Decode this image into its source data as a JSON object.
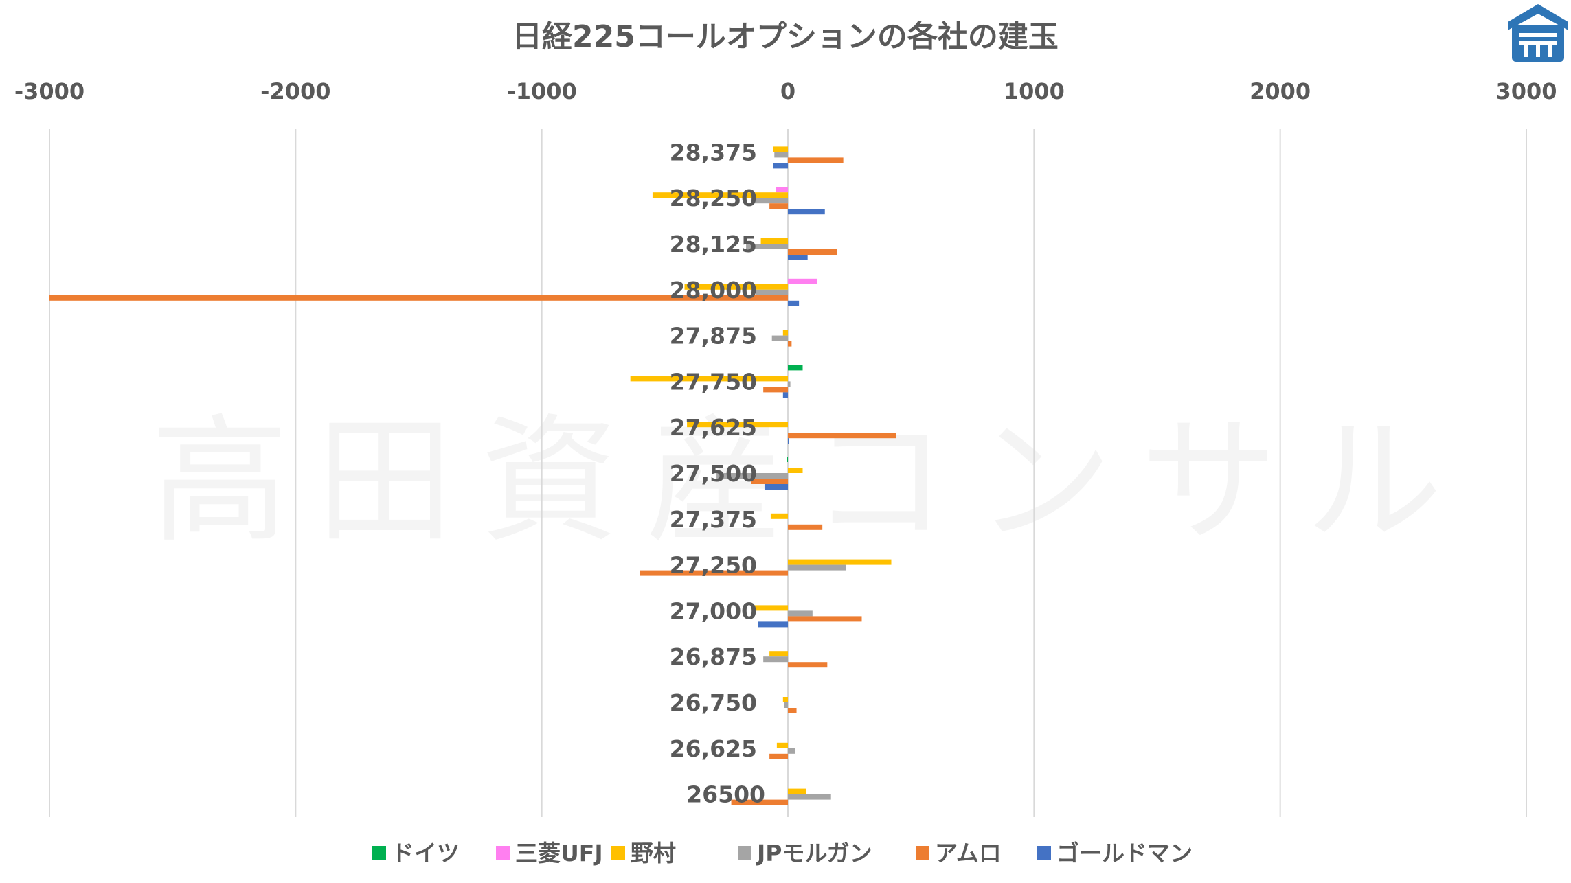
{
  "chart_data": {
    "type": "bar",
    "orientation": "horizontal",
    "title": "日経225コールオプションの各社の建玉",
    "xlim": [
      -3000,
      3000
    ],
    "xticks": [
      -3000,
      -2000,
      -1000,
      0,
      1000,
      2000,
      3000
    ],
    "xtick_labels": [
      "-3000",
      "-2000",
      "-1000",
      "0",
      "1000",
      "2000",
      "3000"
    ],
    "x_axis_position": "top",
    "grid": "vertical",
    "legend_position": "bottom",
    "categories": [
      "28,375",
      "28,250",
      "28,125",
      "28,000",
      "27,875",
      "27,750",
      "27,625",
      "27,500",
      "27,375",
      "27,250",
      "27,000",
      "26,875",
      "26,750",
      "26,625",
      "26500"
    ],
    "series": [
      {
        "name": "ドイツ",
        "color": "#00B050",
        "values": [
          0,
          0,
          0,
          0,
          0,
          60,
          0,
          -5,
          0,
          0,
          0,
          0,
          0,
          0,
          0
        ]
      },
      {
        "name": "三菱UFJ",
        "color": "#FF7FF0",
        "values": [
          0,
          -50,
          0,
          120,
          0,
          0,
          0,
          0,
          0,
          0,
          0,
          0,
          0,
          0,
          0
        ]
      },
      {
        "name": "野村",
        "color": "#FFC000",
        "values": [
          -60,
          -550,
          -110,
          -420,
          -20,
          -640,
          -410,
          60,
          -70,
          420,
          -140,
          -75,
          -20,
          -45,
          75
        ]
      },
      {
        "name": "JPモルガン",
        "color": "#A5A5A5",
        "values": [
          -55,
          -140,
          -170,
          -130,
          -65,
          10,
          0,
          -290,
          0,
          235,
          100,
          -100,
          -15,
          30,
          175
        ]
      },
      {
        "name": "アムロ",
        "color": "#ED7D31",
        "values": [
          225,
          -75,
          200,
          -3000,
          15,
          -100,
          440,
          -150,
          140,
          -600,
          300,
          160,
          35,
          -75,
          -230
        ]
      },
      {
        "name": "ゴールドマン",
        "color": "#4472C4",
        "values": [
          -60,
          150,
          80,
          45,
          0,
          -20,
          5,
          -95,
          0,
          0,
          -120,
          0,
          0,
          0,
          0
        ]
      }
    ]
  },
  "watermark": "高田資産コンサル",
  "logo": {
    "name": "takada-logo",
    "color": "#2E75B6"
  }
}
